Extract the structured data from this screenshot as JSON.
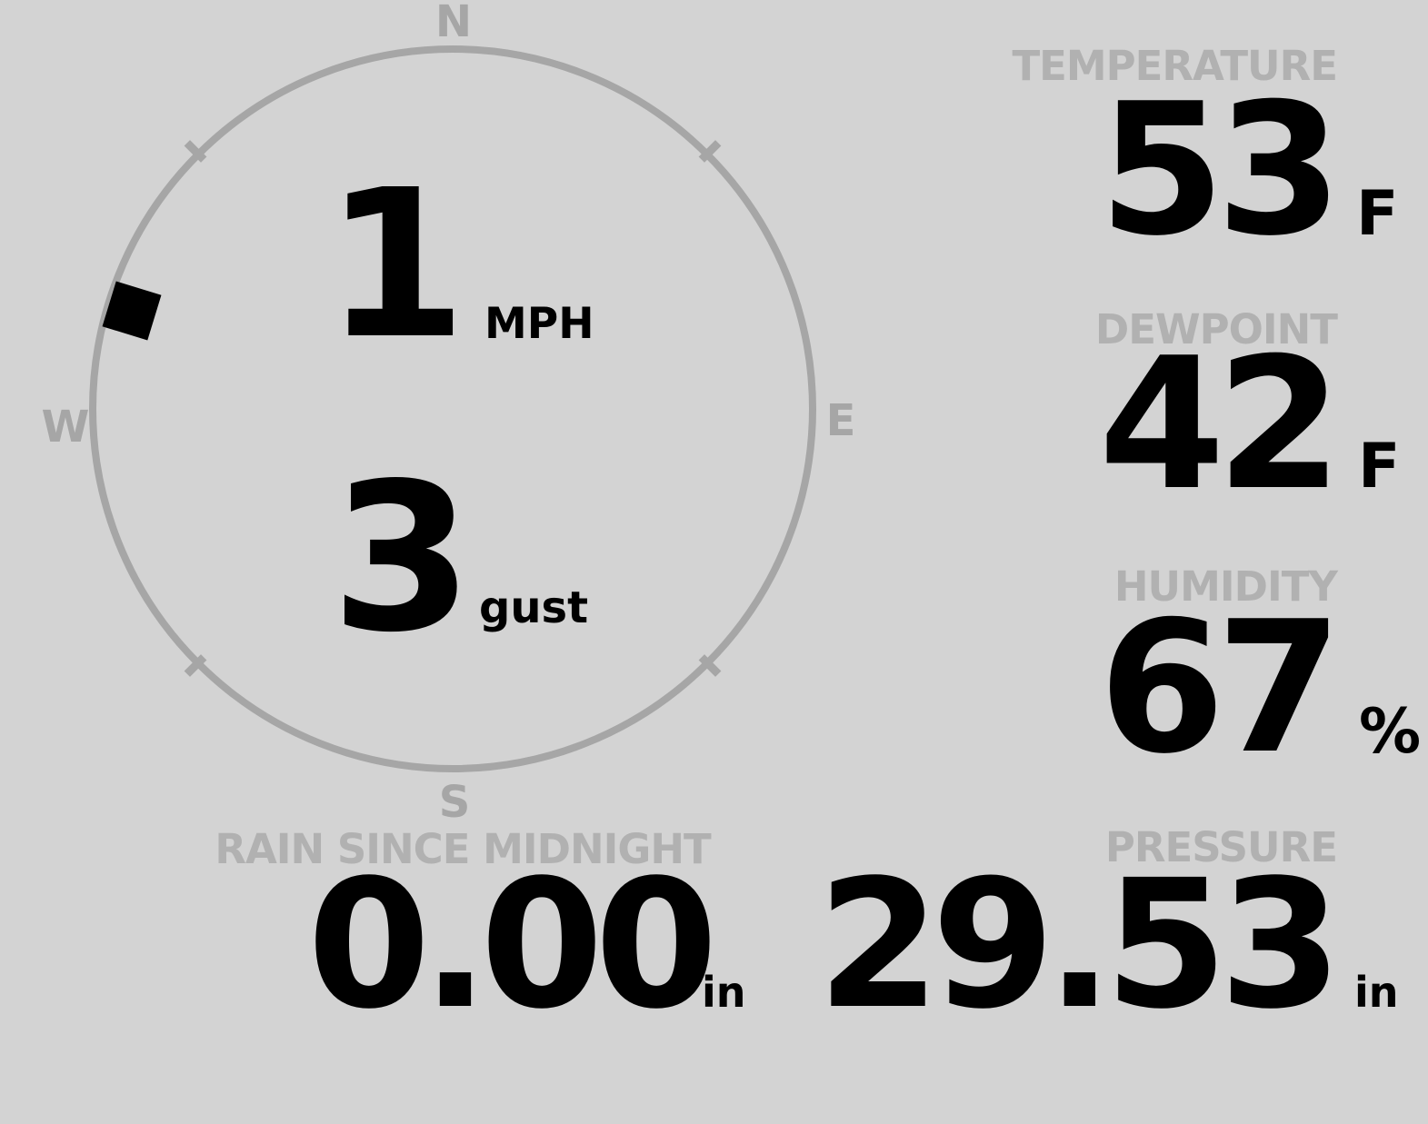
{
  "wind": {
    "speed": "1",
    "speed_unit": "MPH",
    "gust": "3",
    "gust_unit": "gust",
    "direction_degrees": 287,
    "compass": {
      "north": "N",
      "east": "E",
      "south": "S",
      "west": "W"
    }
  },
  "metrics": {
    "temperature": {
      "label": "TEMPERATURE",
      "value": "53",
      "unit": "F"
    },
    "dewpoint": {
      "label": "DEWPOINT",
      "value": "42",
      "unit": "F"
    },
    "humidity": {
      "label": "HUMIDITY",
      "value": "67",
      "unit": "%"
    },
    "rain": {
      "label": "RAIN SINCE MIDNIGHT",
      "value": "0.00",
      "unit": "in"
    },
    "pressure": {
      "label": "PRESSURE",
      "value": "29.53",
      "unit": "in"
    }
  },
  "colors": {
    "background": "#d3d3d3",
    "compass_gray": "#a6a6a6",
    "label_gray": "#b1b1b1",
    "value_black": "#000000"
  }
}
